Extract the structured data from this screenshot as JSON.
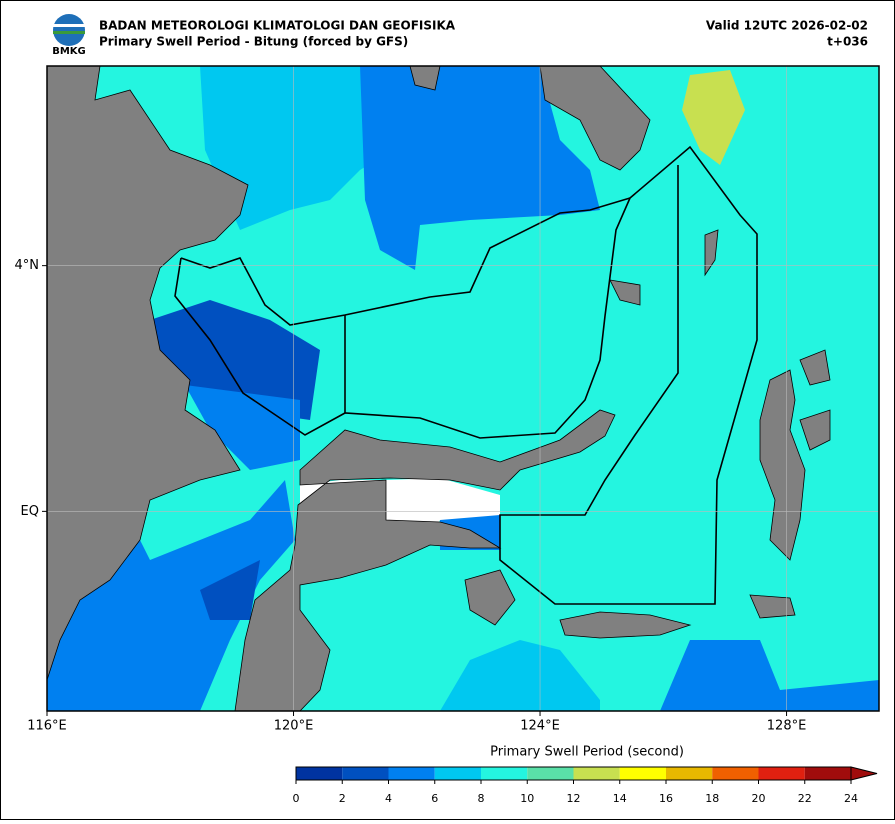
{
  "header": {
    "logo_text": "BMKG",
    "title": "BADAN METEOROLOGI KLIMATOLOGI DAN GEOFISIKA",
    "subtitle": "Primary Swell Period - Bitung (forced by GFS)",
    "valid": "Valid 12UTC 2026-02-02",
    "lead": "t+036"
  },
  "map": {
    "xlim": [
      116,
      129.5
    ],
    "ylim": [
      -3.25,
      7.25
    ],
    "xticks": [
      {
        "value": 116,
        "label": "116°E"
      },
      {
        "value": 120,
        "label": "120°E"
      },
      {
        "value": 124,
        "label": "124°E"
      },
      {
        "value": 128,
        "label": "128°E"
      }
    ],
    "yticks": [
      {
        "value": 0,
        "label": "EQ"
      },
      {
        "value": 4,
        "label": "4°N"
      }
    ]
  },
  "colorbar": {
    "label": "Primary Swell Period (second)",
    "ticks": [
      0,
      2,
      4,
      6,
      8,
      10,
      12,
      14,
      16,
      18,
      20,
      22,
      24
    ],
    "colors": [
      "#0033a0",
      "#0050c0",
      "#0080f0",
      "#00c8f0",
      "#24f5e0",
      "#5ae0a8",
      "#c8e050",
      "#ffff00",
      "#e8b800",
      "#f06000",
      "#e02010",
      "#a00c0c"
    ]
  }
}
